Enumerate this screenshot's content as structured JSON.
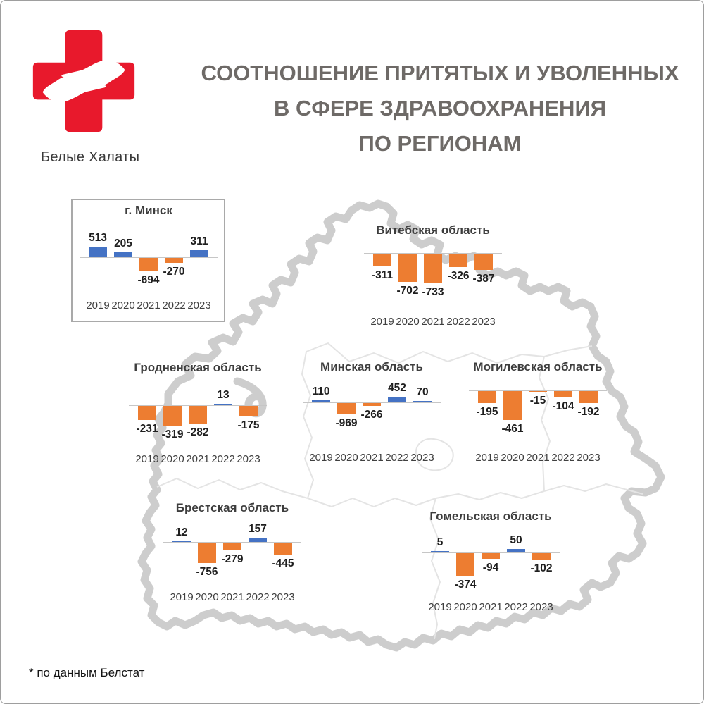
{
  "logo": {
    "brand": "Белые Халаты",
    "icon": "red-cross-with-hands"
  },
  "title": {
    "lines": [
      "СООТНОШЕНИЕ ПРИТЯТЫХ И УВОЛЕННЫХ",
      "В СФЕРЕ ЗДРАВООХРАНЕНИЯ",
      "ПО РЕГИОНАМ"
    ]
  },
  "footnote": "* по данным Белстат",
  "years": [
    "2019",
    "2020",
    "2021",
    "2022",
    "2023"
  ],
  "colors": {
    "positive_bar": "#4472C4",
    "negative_bar": "#ED7D31",
    "axis": "#c6c6c6",
    "map_outline": "#cdcdcd",
    "map_inner_border": "#e4e4e4",
    "logo_red": "#E8192C",
    "title_gray": "#6e6a67"
  },
  "chart_data": [
    {
      "type": "bar",
      "id": "minsk_city",
      "region": "г. Минск",
      "framed": true,
      "categories": [
        "2019",
        "2020",
        "2021",
        "2022",
        "2023"
      ],
      "values": [
        513,
        205,
        -694,
        -270,
        311
      ]
    },
    {
      "type": "bar",
      "id": "vitebsk",
      "region": "Витебская область",
      "framed": false,
      "categories": [
        "2019",
        "2020",
        "2021",
        "2022",
        "2023"
      ],
      "values": [
        -311,
        -702,
        -733,
        -326,
        -387
      ]
    },
    {
      "type": "bar",
      "id": "grodno",
      "region": "Гродненская область",
      "framed": false,
      "categories": [
        "2019",
        "2020",
        "2021",
        "2022",
        "2023"
      ],
      "values": [
        -231,
        -319,
        -282,
        13,
        -175
      ]
    },
    {
      "type": "bar",
      "id": "minsk_obl",
      "region": "Минская область",
      "framed": false,
      "categories": [
        "2019",
        "2020",
        "2021",
        "2022",
        "2023"
      ],
      "values": [
        110,
        -969,
        -266,
        452,
        70
      ]
    },
    {
      "type": "bar",
      "id": "mogilev",
      "region": "Могилевская область",
      "framed": false,
      "categories": [
        "2019",
        "2020",
        "2021",
        "2022",
        "2023"
      ],
      "values": [
        -195,
        -461,
        -15,
        -104,
        -192
      ]
    },
    {
      "type": "bar",
      "id": "brest",
      "region": "Брестская область",
      "framed": false,
      "categories": [
        "2019",
        "2020",
        "2021",
        "2022",
        "2023"
      ],
      "values": [
        12,
        -756,
        -279,
        157,
        -445
      ]
    },
    {
      "type": "bar",
      "id": "gomel",
      "region": "Гомельская область",
      "framed": false,
      "categories": [
        "2019",
        "2020",
        "2021",
        "2022",
        "2023"
      ],
      "values": [
        5,
        -374,
        -94,
        50,
        -102
      ]
    }
  ]
}
